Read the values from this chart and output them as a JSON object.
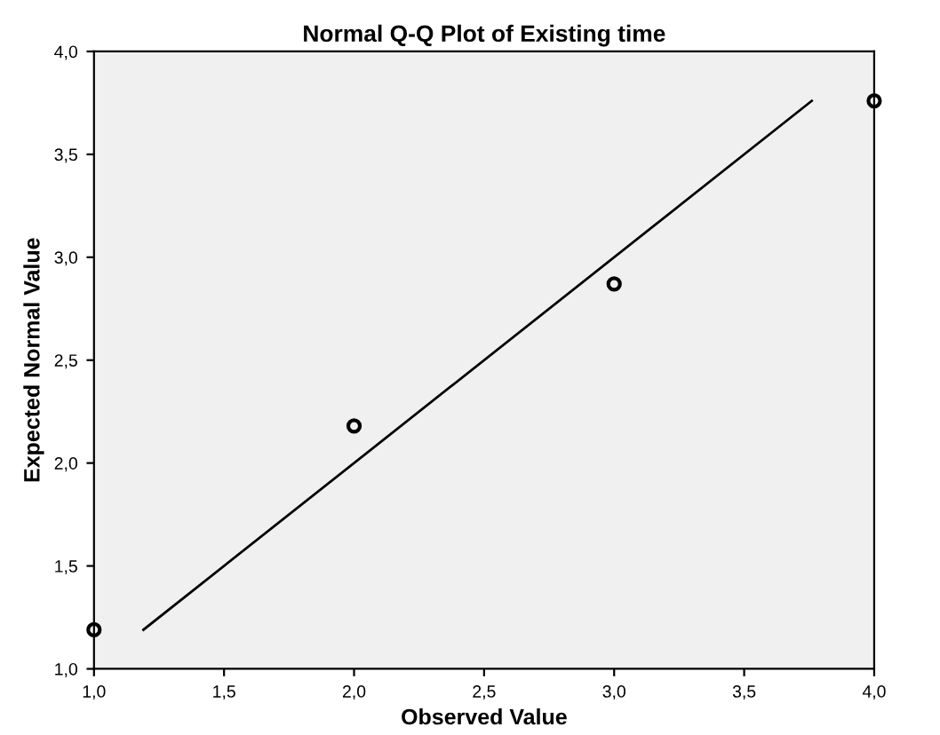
{
  "chart_data": {
    "type": "scatter",
    "title": "Normal Q-Q Plot of Existing time",
    "xlabel": "Observed Value",
    "ylabel": "Expected Normal Value",
    "x": [
      1,
      2,
      3,
      4
    ],
    "series": [
      {
        "color": "#000000",
        "marker": "circle",
        "values": [
          1.19,
          2.18,
          2.87,
          3.76
        ]
      },
      {
        "type": "line",
        "color": "#000000",
        "marker": "none",
        "x": [
          1.19,
          3.76
        ],
        "values": [
          1.19,
          3.76
        ]
      }
    ],
    "xlim": [
      1.0,
      4.0
    ],
    "ylim": [
      1.0,
      4.0
    ],
    "xticks": [
      {
        "value": 1.0,
        "label": "1,0"
      },
      {
        "value": 1.5,
        "label": "1,5"
      },
      {
        "value": 2.0,
        "label": "2,0"
      },
      {
        "value": 2.5,
        "label": "2,5"
      },
      {
        "value": 3.0,
        "label": "3,0"
      },
      {
        "value": 3.5,
        "label": "3,5"
      },
      {
        "value": 4.0,
        "label": "4,0"
      }
    ],
    "yticks": [
      {
        "value": 1.0,
        "label": "1,0"
      },
      {
        "value": 1.5,
        "label": "1,5"
      },
      {
        "value": 2.0,
        "label": "2,0"
      },
      {
        "value": 2.5,
        "label": "2,5"
      },
      {
        "value": 3.0,
        "label": "3,0"
      },
      {
        "value": 3.5,
        "label": "3,5"
      },
      {
        "value": 4.0,
        "label": "4,0"
      }
    ],
    "grid": false,
    "legend": false
  }
}
